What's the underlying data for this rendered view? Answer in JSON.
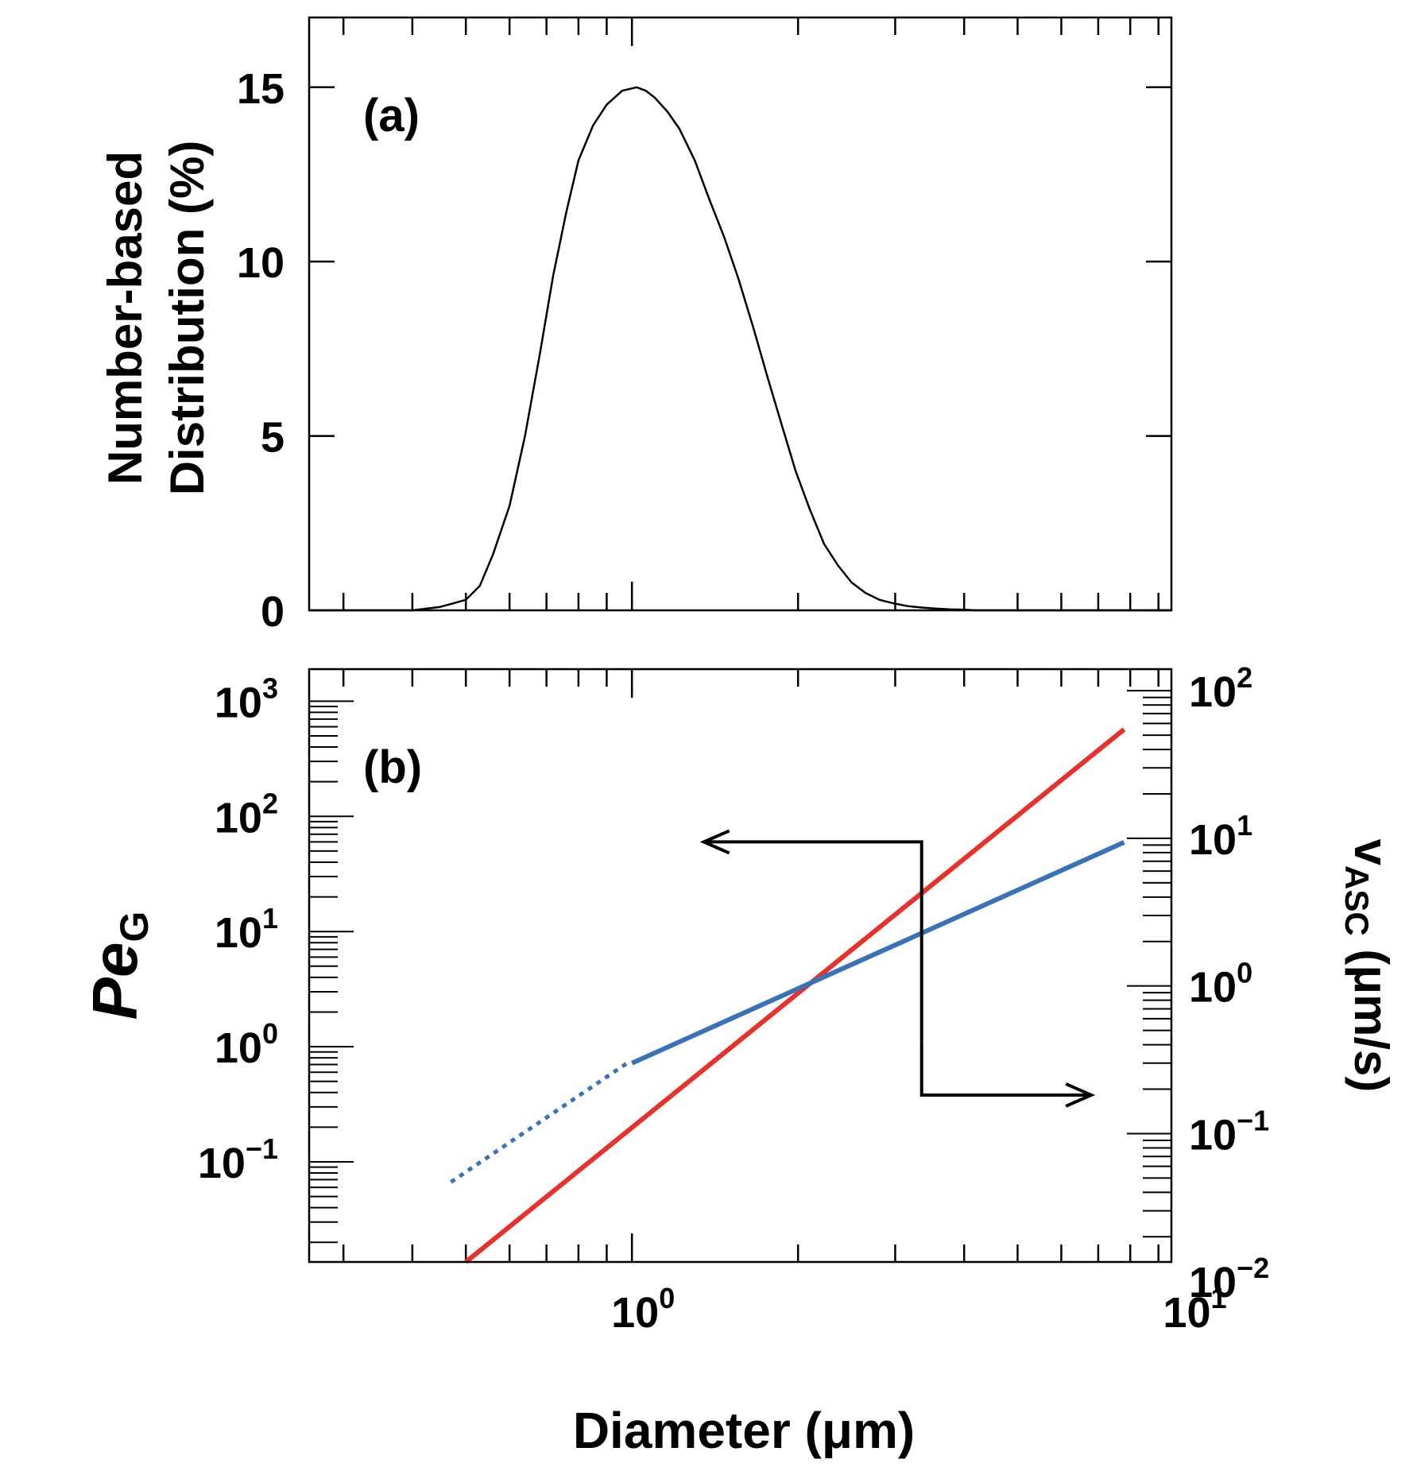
{
  "chart_data": [
    {
      "id": "a",
      "type": "line",
      "panel_label": "(a)",
      "ylabel_lines": [
        "Number-based",
        "Distribution (%)"
      ],
      "xscale": "log",
      "xlim": [
        0.26,
        9.5
      ],
      "ylim": [
        0,
        17
      ],
      "yticks": [
        0,
        5,
        10,
        15
      ],
      "ytick_labels": [
        "0",
        "5",
        "10",
        "15"
      ],
      "series": [
        {
          "name": "distribution",
          "color": "#000000",
          "x": [
            0.26,
            0.4,
            0.45,
            0.5,
            0.53,
            0.56,
            0.6,
            0.64,
            0.68,
            0.72,
            0.76,
            0.8,
            0.85,
            0.9,
            0.96,
            1.02,
            1.06,
            1.1,
            1.16,
            1.22,
            1.3,
            1.38,
            1.47,
            1.56,
            1.66,
            1.76,
            1.87,
            1.98,
            2.1,
            2.23,
            2.36,
            2.5,
            2.65,
            2.81,
            2.98,
            3.16,
            3.35,
            3.55,
            3.76,
            3.98,
            4.2,
            4.6,
            5.0,
            6.0,
            9.5
          ],
          "y": [
            0,
            0,
            0.1,
            0.3,
            0.7,
            1.6,
            3.0,
            5.0,
            7.3,
            9.6,
            11.4,
            12.9,
            13.9,
            14.5,
            14.9,
            15.0,
            14.9,
            14.7,
            14.3,
            13.8,
            12.9,
            11.8,
            10.7,
            9.5,
            8.1,
            6.7,
            5.3,
            4.0,
            2.9,
            1.9,
            1.3,
            0.8,
            0.5,
            0.3,
            0.2,
            0.12,
            0.08,
            0.05,
            0.03,
            0.02,
            0,
            0,
            0,
            0,
            0
          ]
        }
      ]
    },
    {
      "id": "b",
      "type": "line",
      "panel_label": "(b)",
      "ylabel": "PeG",
      "ylabel_main": "Pe",
      "ylabel_sub": "G",
      "y2label": "vASC (μm/s)",
      "y2label_main": "v",
      "y2label_sub": "ASC",
      "y2label_unit": " (μm/s)",
      "xlabel": "Diameter  (μm)",
      "xscale": "log",
      "yscale": "log",
      "xlim": [
        0.26,
        9.5
      ],
      "ylim": [
        0.0135,
        1900
      ],
      "y2lim": [
        0.0135,
        140
      ],
      "x_ticks": [
        {
          "value": 1,
          "base": "10",
          "exp": "0"
        },
        {
          "value": 10,
          "base": "10",
          "exp": "1"
        }
      ],
      "y_ticks": [
        {
          "value": 0.1,
          "base": "10",
          "exp": "−1"
        },
        {
          "value": 1,
          "base": "10",
          "exp": "0"
        },
        {
          "value": 10,
          "base": "10",
          "exp": "1"
        },
        {
          "value": 100,
          "base": "10",
          "exp": "2"
        },
        {
          "value": 1000,
          "base": "10",
          "exp": "3"
        }
      ],
      "y2_ticks": [
        {
          "value": 0.01,
          "base": "10",
          "exp": "−2"
        },
        {
          "value": 0.1,
          "base": "10",
          "exp": "−1"
        },
        {
          "value": 1,
          "base": "10",
          "exp": "0"
        },
        {
          "value": 10,
          "base": "10",
          "exp": "1"
        },
        {
          "value": 100,
          "base": "10",
          "exp": "2"
        }
      ],
      "series": [
        {
          "name": "PeG",
          "axis": "left",
          "color": "#e8312a",
          "style": "solid",
          "x": [
            0.5,
            7.8
          ],
          "y": [
            0.0135,
            570
          ]
        },
        {
          "name": "vASC",
          "axis": "right",
          "color": "#3a72b8",
          "style": "dotted",
          "x": [
            0.47,
            0.98
          ],
          "y": [
            0.047,
            0.3
          ]
        },
        {
          "name": "vASC",
          "axis": "right",
          "color": "#3a72b8",
          "style": "solid",
          "x": [
            1.0,
            7.8
          ],
          "y": [
            0.3,
            9.4
          ]
        }
      ],
      "annotations": [
        {
          "name": "arrow-to-left-axis",
          "direction": "left",
          "points": [
            [
              3.35,
              1.1
            ],
            [
              3.35,
              60
            ],
            [
              1.35,
              60
            ]
          ],
          "axis": "left"
        },
        {
          "name": "arrow-to-right-axis",
          "direction": "right",
          "points": [
            [
              3.35,
              1.1
            ],
            [
              3.35,
              0.38
            ],
            [
              6.8,
              0.38
            ]
          ],
          "axis": "left"
        }
      ]
    }
  ]
}
